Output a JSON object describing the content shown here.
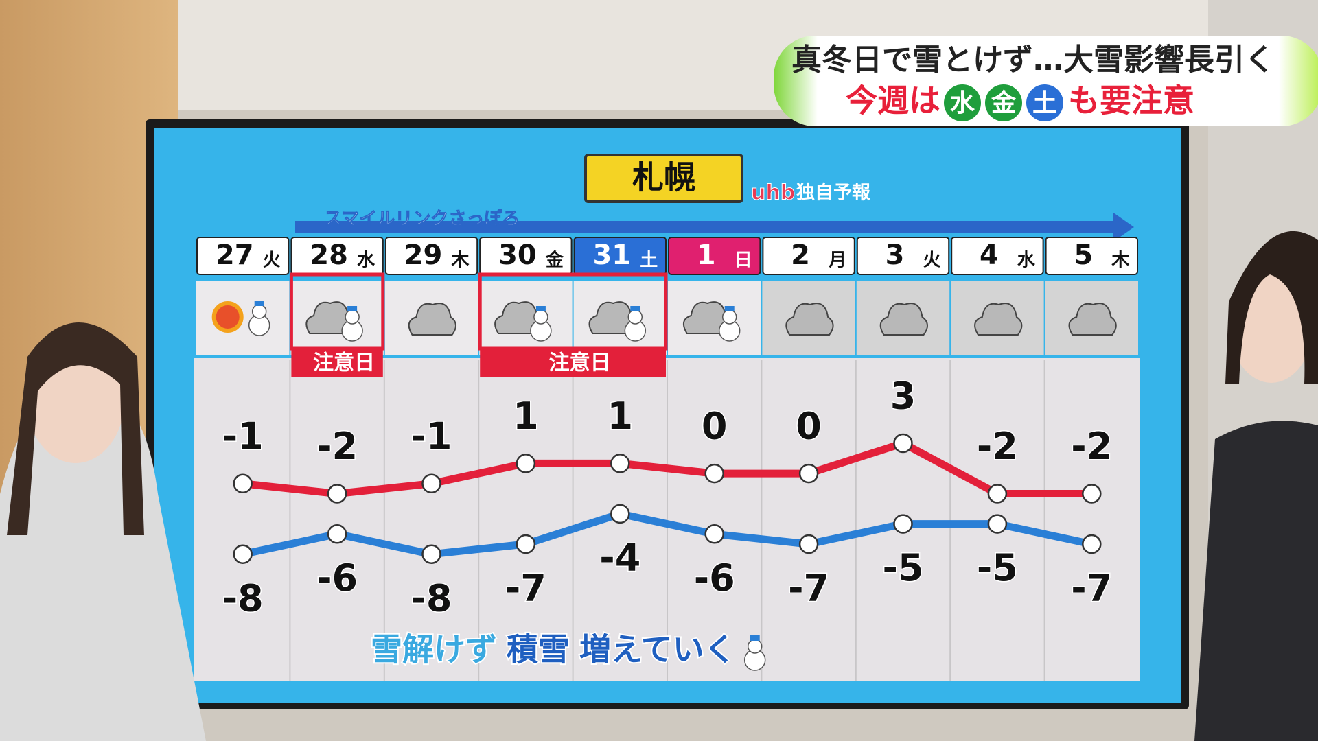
{
  "caption": {
    "line1": "真冬日で雪とけず…大雪影響長引く",
    "line2": [
      "今週は",
      "水",
      "金",
      "土",
      "も要注意"
    ]
  },
  "chart_data": {
    "type": "line",
    "title": "札幌",
    "source": "uhb",
    "source_note": "独自予報",
    "banner": "スマイルリンクさっぽろ",
    "categories": [
      "27",
      "28",
      "29",
      "30",
      "31",
      "1",
      "2",
      "3",
      "4",
      "5"
    ],
    "weekdays": [
      "火",
      "水",
      "木",
      "金",
      "土",
      "日",
      "月",
      "火",
      "水",
      "木"
    ],
    "annotations": [
      "注意日",
      "注意日"
    ],
    "series": [
      {
        "color": "#e3203a",
        "values": [
          -1,
          -2,
          -1,
          1,
          1,
          0,
          0,
          3,
          -2,
          -2
        ]
      },
      {
        "color": "#2a7fd6",
        "values": [
          -8,
          -6,
          -8,
          -7,
          -4,
          -6,
          -7,
          -5,
          -5,
          -7
        ]
      }
    ],
    "footnote": [
      "雪解けず",
      "積雪",
      "増えていく"
    ]
  }
}
